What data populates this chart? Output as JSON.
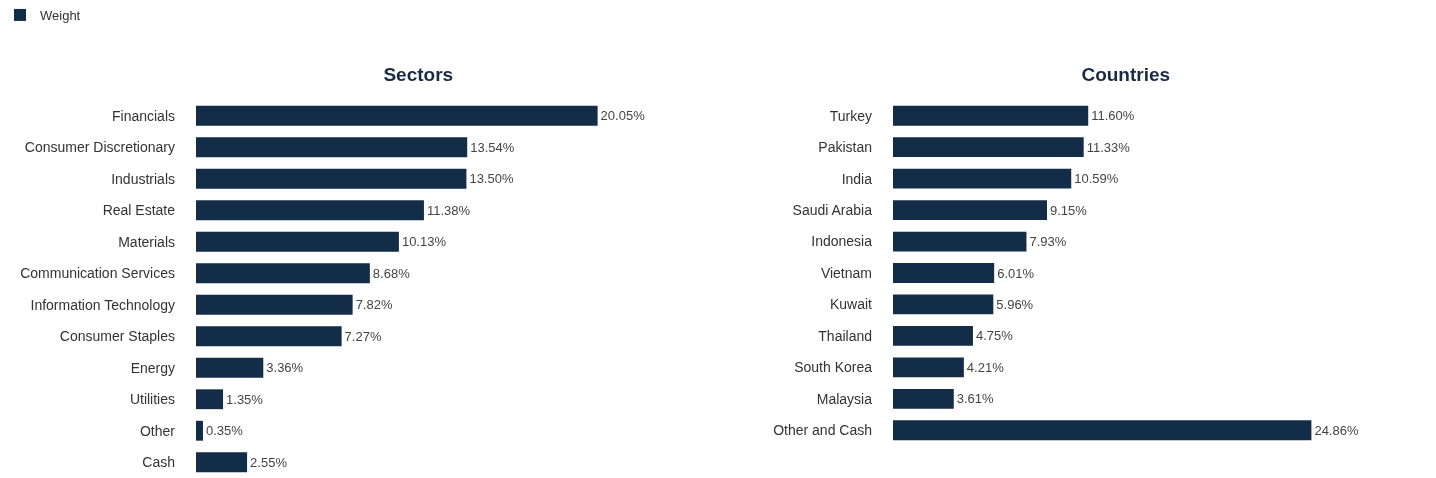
{
  "chart_data": [
    {
      "type": "bar",
      "orientation": "horizontal",
      "title": "Sectors",
      "legend": "top left",
      "grid": false,
      "categories": [
        "Financials",
        "Consumer Discretionary",
        "Industrials",
        "Real Estate",
        "Materials",
        "Communication Services",
        "Information Technology",
        "Consumer Staples",
        "Energy",
        "Utilities",
        "Other",
        "Cash"
      ],
      "series": [
        {
          "name": "Weight",
          "color": "#132c47",
          "values": [
            20.05,
            13.54,
            13.5,
            11.38,
            10.13,
            8.68,
            7.82,
            7.27,
            3.36,
            1.35,
            0.35,
            2.55
          ],
          "value_labels": [
            "20.05%",
            "13.54%",
            "13.50%",
            "11.38%",
            "10.13%",
            "8.68%",
            "7.82%",
            "7.27%",
            "3.36%",
            "1.35%",
            "0.35%",
            "2.55%"
          ]
        }
      ]
    },
    {
      "type": "bar",
      "orientation": "horizontal",
      "title": "Countries",
      "grid": false,
      "categories": [
        "Turkey",
        "Pakistan",
        "India",
        "Saudi Arabia",
        "Indonesia",
        "Vietnam",
        "Kuwait",
        "Thailand",
        "South Korea",
        "Malaysia",
        "Other and Cash"
      ],
      "series": [
        {
          "color": "#132c47",
          "values": [
            11.6,
            11.33,
            10.59,
            9.15,
            7.93,
            6.01,
            5.96,
            4.75,
            4.21,
            3.61,
            24.86
          ],
          "value_labels": [
            "11.60%",
            "11.33%",
            "10.59%",
            "9.15%",
            "7.93%",
            "6.01%",
            "5.96%",
            "4.75%",
            "4.21%",
            "3.61%",
            "24.86%"
          ]
        }
      ]
    }
  ]
}
